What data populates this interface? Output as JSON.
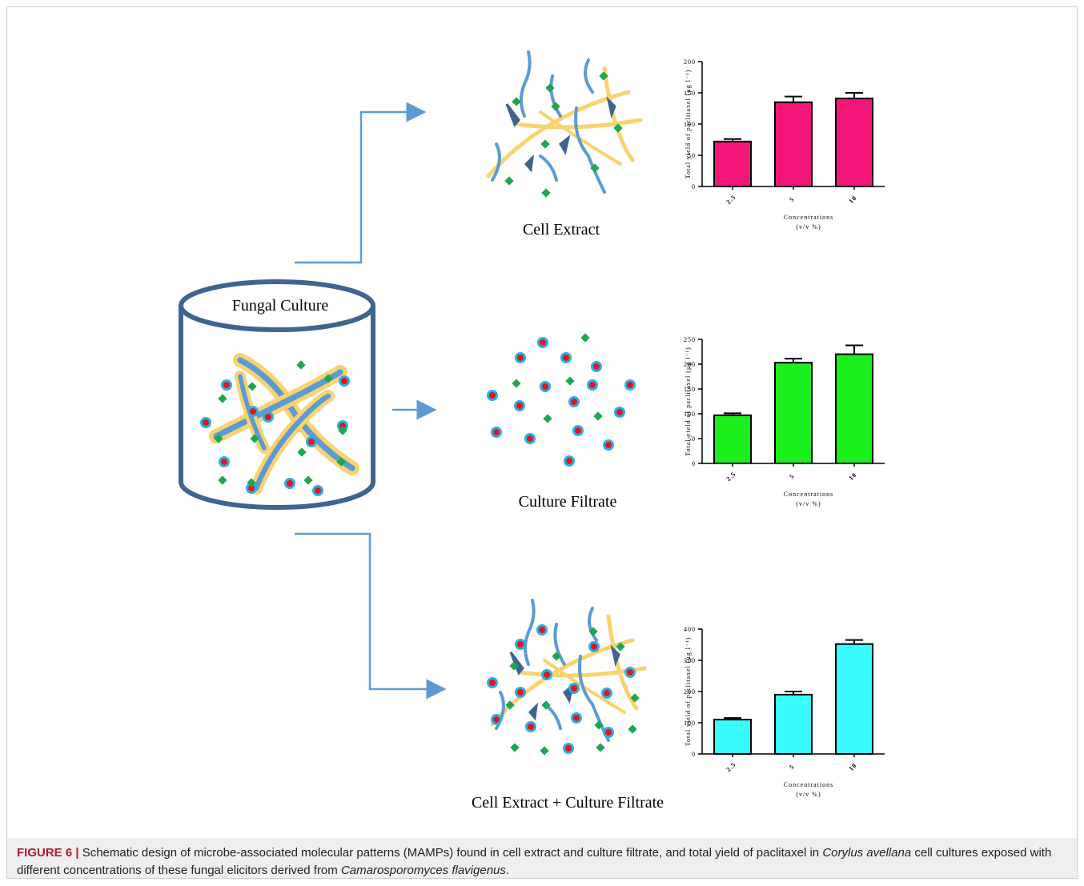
{
  "figure": {
    "fungal_culture": "Fungal Culture",
    "cell_extract": "Cell Extract",
    "culture_filtrate": "Culture Filtrate",
    "combined": "Cell Extract + Culture Filtrate"
  },
  "chart_data": [
    {
      "type": "bar",
      "categories": [
        "2.5",
        "5",
        "10"
      ],
      "values": [
        72,
        135,
        141
      ],
      "errors": [
        4,
        9,
        9
      ],
      "color": "#f5167a",
      "ylim": [
        0,
        200
      ],
      "yticks": [
        0,
        50,
        100,
        150,
        200
      ],
      "y_label": "Total yield of paclitaxel (μg l⁻¹)",
      "x_label": "Concentrations",
      "x_label_unit": "(v/v %)"
    },
    {
      "type": "bar",
      "categories": [
        "2.5",
        "5",
        "10"
      ],
      "values": [
        97,
        203,
        220
      ],
      "errors": [
        4,
        8,
        18
      ],
      "color": "#1cf01c",
      "ylim": [
        0,
        250
      ],
      "yticks": [
        0,
        50,
        100,
        150,
        200,
        250
      ],
      "y_label": "Total yield of paclitaxel (μg l⁻¹)",
      "x_label": "Concentrations",
      "x_label_unit": "(v/v %)"
    },
    {
      "type": "bar",
      "categories": [
        "2.5",
        "5",
        "10"
      ],
      "values": [
        110,
        190,
        352
      ],
      "errors": [
        5,
        10,
        13
      ],
      "color": "#38fcfc",
      "ylim": [
        0,
        400
      ],
      "yticks": [
        0,
        100,
        200,
        300,
        400
      ],
      "y_label": "Total yield of paclitaxel (μg l⁻¹)",
      "x_label": "Concentrations",
      "x_label_unit": "(v/v %)"
    }
  ],
  "caption": {
    "label": "FIGURE 6 |",
    "parts": [
      " Schematic design of microbe-associated molecular patterns (MAMPs) found in cell extract and culture filtrate, and total yield of paclitaxel in ",
      "Corylus avellana",
      " cell cultures exposed with different concentrations of these fungal elicitors derived from ",
      "Camarosporomyces flavigenus",
      "."
    ]
  }
}
